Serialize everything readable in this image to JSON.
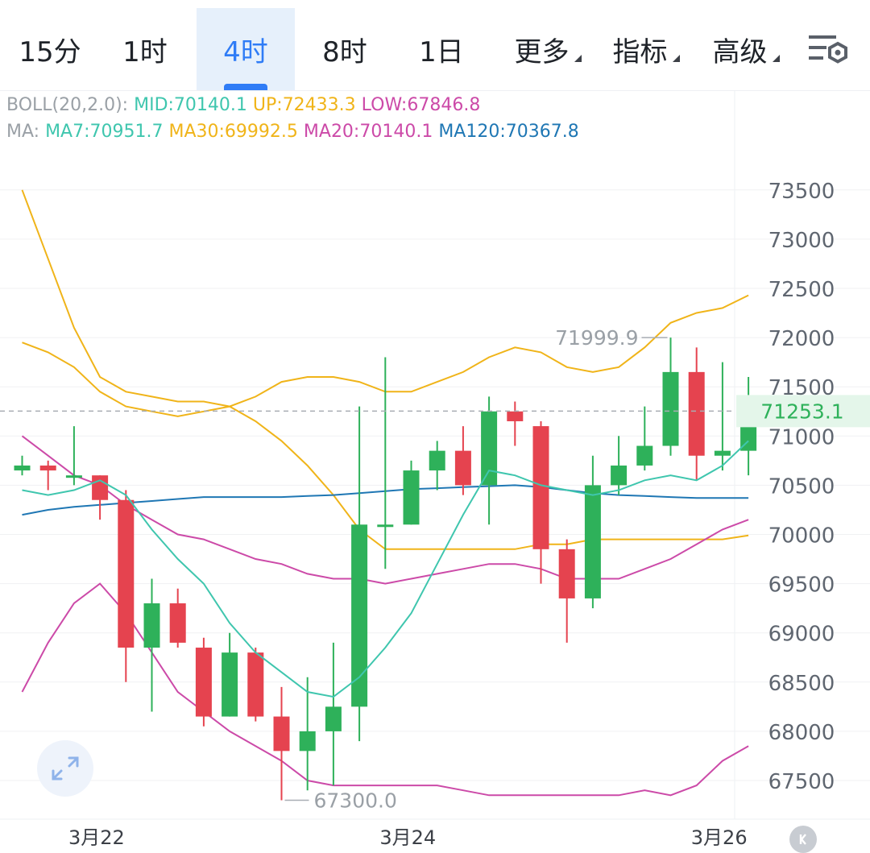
{
  "tabs": [
    {
      "label": "15分",
      "active": false,
      "dropdown": false
    },
    {
      "label": "1时",
      "active": false,
      "dropdown": false
    },
    {
      "label": "4时",
      "active": true,
      "dropdown": false
    },
    {
      "label": "8时",
      "active": false,
      "dropdown": false
    },
    {
      "label": "1日",
      "active": false,
      "dropdown": false
    },
    {
      "label": "更多",
      "active": false,
      "dropdown": true
    },
    {
      "label": "指标",
      "active": false,
      "dropdown": true
    },
    {
      "label": "高级",
      "active": false,
      "dropdown": true
    }
  ],
  "settings_icon": "chart-settings-icon",
  "legend": {
    "boll": {
      "prefix": "BOLL(20,2.0):",
      "mid": "MID:70140.1",
      "up": "UP:72433.3",
      "low": "LOW:67846.8"
    },
    "ma": {
      "prefix": "MA:",
      "ma7": "MA7:70951.7",
      "ma30": "MA30:69992.5",
      "ma20": "MA20:70140.1",
      "ma120": "MA120:70367.8"
    }
  },
  "colors": {
    "up": "#2eb15a",
    "down": "#e5434f",
    "ma7": "#3fc6ae",
    "ma30": "#f0b419",
    "ma20": "#cc4aa8",
    "ma120": "#1f77b4",
    "label_gray": "#9aa0a6",
    "tab_active": "#2f7cf6"
  },
  "chart_data": {
    "type": "candlestick",
    "interval": "4时",
    "y_ticks": [
      67500,
      68000,
      68500,
      69000,
      69500,
      70000,
      70500,
      71000,
      71500,
      72000,
      72500,
      73000,
      73500
    ],
    "x_labels": [
      {
        "label": "3月22",
        "index": 2
      },
      {
        "label": "3月24",
        "index": 14
      },
      {
        "label": "3月26",
        "index": 26
      }
    ],
    "current_price": "71253.1",
    "max_label": "71999.9",
    "min_label": "67300.0",
    "candles": [
      [
        70650,
        70800,
        70600,
        70700
      ],
      [
        70700,
        70750,
        70450,
        70650
      ],
      [
        70600,
        71100,
        70500,
        70600
      ],
      [
        70600,
        70600,
        70150,
        70350
      ],
      [
        70350,
        70450,
        68500,
        68850
      ],
      [
        68850,
        69550,
        68200,
        69300
      ],
      [
        69300,
        69450,
        68850,
        68900
      ],
      [
        68850,
        68950,
        68050,
        68150
      ],
      [
        68150,
        69000,
        68150,
        68800
      ],
      [
        68800,
        68850,
        68100,
        68150
      ],
      [
        68150,
        68450,
        67300,
        67800
      ],
      [
        67800,
        68550,
        67400,
        68000
      ],
      [
        68000,
        68900,
        67450,
        68250
      ],
      [
        68250,
        71300,
        67900,
        70100
      ],
      [
        70100,
        71800,
        69650,
        70100
      ],
      [
        70100,
        70750,
        70100,
        70650
      ],
      [
        70650,
        70950,
        70450,
        70850
      ],
      [
        70850,
        71100,
        70400,
        70500
      ],
      [
        70500,
        71400,
        70100,
        71250
      ],
      [
        71250,
        71350,
        70900,
        71150
      ],
      [
        71100,
        71150,
        69500,
        69850
      ],
      [
        69850,
        69950,
        68900,
        69350
      ],
      [
        69350,
        70800,
        69250,
        70500
      ],
      [
        70500,
        71000,
        70400,
        70700
      ],
      [
        70700,
        71300,
        70650,
        70900
      ],
      [
        70900,
        72000,
        70800,
        71650
      ],
      [
        71650,
        71900,
        70550,
        70800
      ],
      [
        70800,
        71750,
        70650,
        70850
      ],
      [
        70850,
        71600,
        70600,
        71250
      ]
    ],
    "ma7": [
      70450,
      70400,
      70450,
      70550,
      70400,
      70050,
      69750,
      69500,
      69100,
      68800,
      68600,
      68400,
      68350,
      68550,
      68850,
      69200,
      69700,
      70200,
      70650,
      70600,
      70500,
      70450,
      70400,
      70450,
      70550,
      70600,
      70550,
      70700,
      70950
    ],
    "ma30": [
      73500,
      72800,
      72100,
      71600,
      71450,
      71400,
      71350,
      71350,
      71300,
      71150,
      70950,
      70700,
      70400,
      70050,
      69850,
      69850,
      69850,
      69850,
      69850,
      69850,
      69900,
      69900,
      69950,
      69950,
      69950,
      69950,
      69950,
      69950,
      69990
    ],
    "ma20": [
      71000,
      70800,
      70600,
      70500,
      70300,
      70150,
      70000,
      69950,
      69850,
      69750,
      69700,
      69600,
      69550,
      69550,
      69500,
      69550,
      69600,
      69650,
      69700,
      69700,
      69650,
      69550,
      69550,
      69550,
      69650,
      69750,
      69900,
      70050,
      70150
    ],
    "ma120": [
      70200,
      70250,
      70280,
      70300,
      70320,
      70340,
      70360,
      70380,
      70380,
      70380,
      70380,
      70390,
      70400,
      70420,
      70440,
      70460,
      70470,
      70480,
      70490,
      70500,
      70480,
      70450,
      70420,
      70400,
      70390,
      70380,
      70370,
      70370,
      70370
    ],
    "boll_up": [
      71950,
      71850,
      71700,
      71450,
      71300,
      71250,
      71200,
      71250,
      71300,
      71400,
      71550,
      71600,
      71600,
      71550,
      71450,
      71450,
      71550,
      71650,
      71800,
      71900,
      71850,
      71700,
      71650,
      71700,
      71900,
      72150,
      72250,
      72300,
      72430
    ],
    "boll_low": [
      68400,
      68900,
      69300,
      69500,
      69200,
      68800,
      68400,
      68200,
      68000,
      67850,
      67700,
      67500,
      67450,
      67450,
      67450,
      67450,
      67450,
      67400,
      67350,
      67350,
      67350,
      67350,
      67350,
      67350,
      67400,
      67350,
      67450,
      67700,
      67850
    ]
  }
}
